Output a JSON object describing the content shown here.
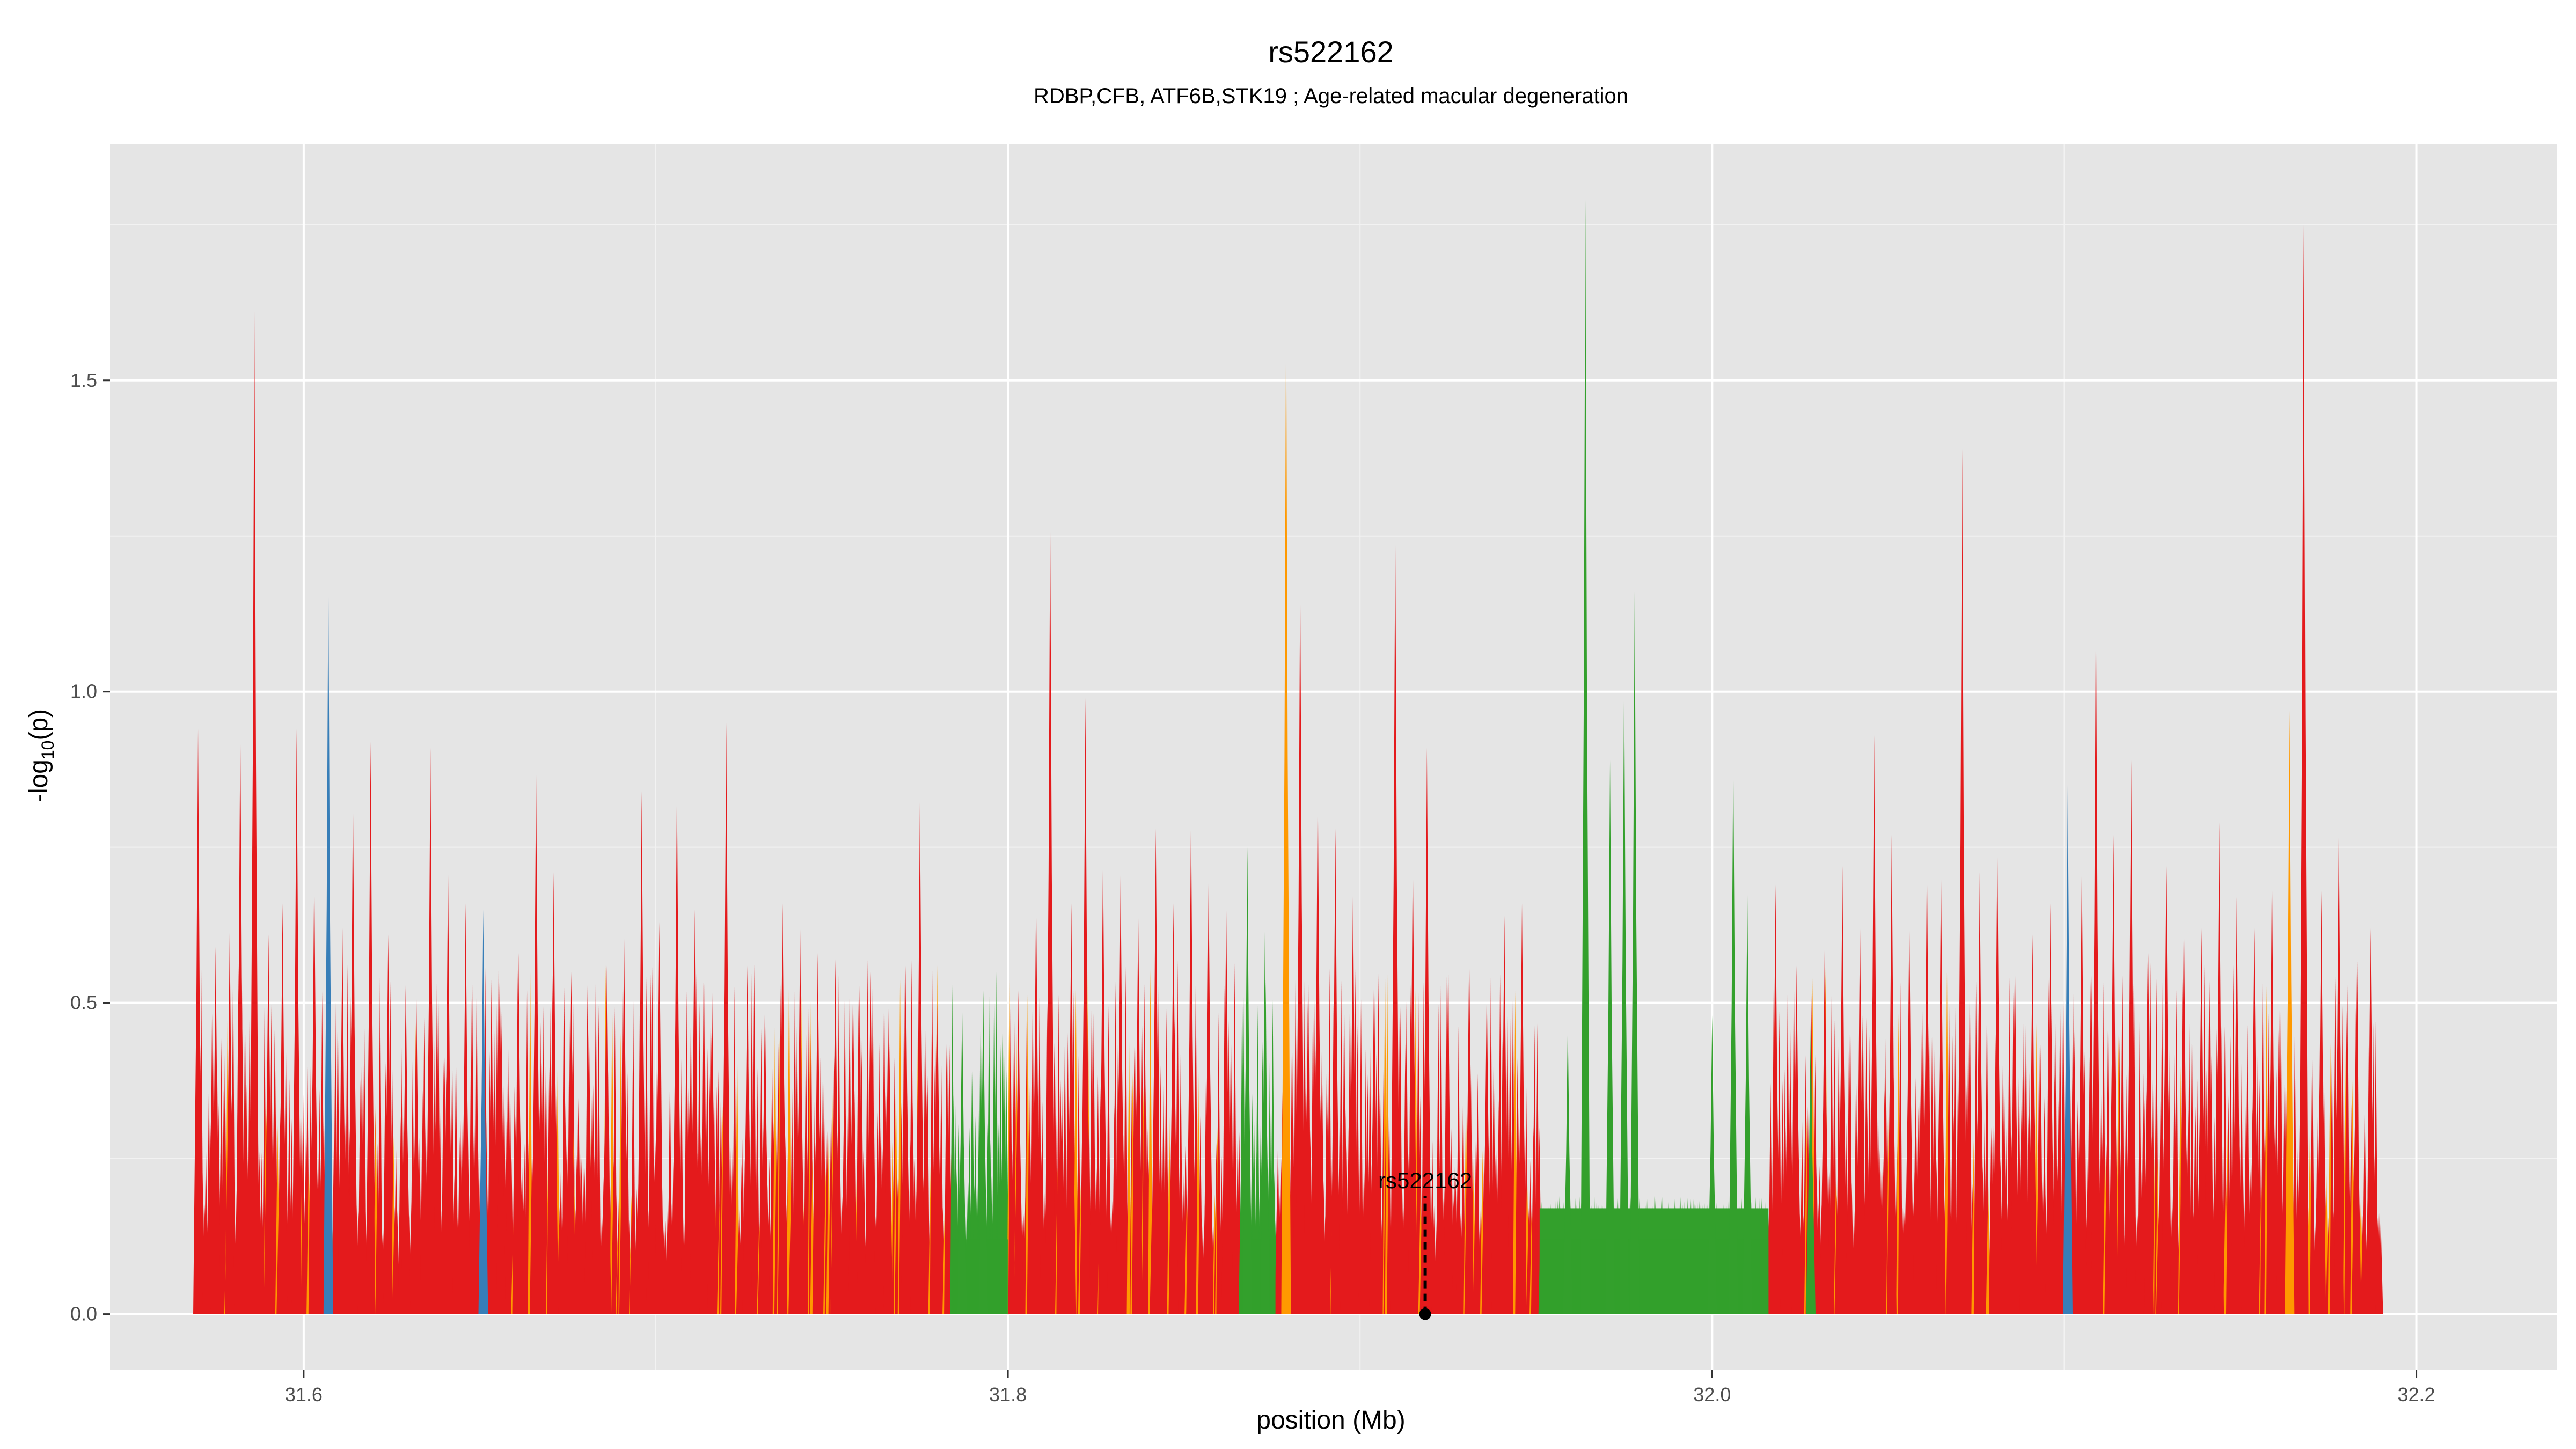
{
  "chart_data": {
    "type": "area",
    "title": "rs522162",
    "subtitle": "RDBP,CFB, ATF6B,STK19 ; Age-related macular degeneration",
    "xlabel": "position (Mb)",
    "ylabel_prefix": "-log",
    "ylabel_sub": "10",
    "ylabel_suffix": "(p)",
    "xlim": [
      31.545,
      32.24
    ],
    "ylim": [
      -0.09,
      1.88
    ],
    "x_ticks": [
      31.6,
      31.8,
      32.0,
      32.2
    ],
    "x_tick_labels": [
      "31.6",
      "31.8",
      "32.0",
      "32.2"
    ],
    "y_ticks": [
      0.0,
      0.5,
      1.0,
      1.5
    ],
    "y_tick_labels": [
      "0.0",
      "0.5",
      "1.0",
      "1.5"
    ],
    "grid": true,
    "background": "#e5e5e5",
    "colors": {
      "red": "#e41a1c",
      "green": "#33a02c",
      "blue": "#377eb8",
      "orange": "#ff9900"
    },
    "data_range": [
      31.57,
      32.19
    ],
    "green_regions": [
      [
        31.784,
        31.8
      ],
      [
        31.866,
        31.876
      ],
      [
        31.951,
        32.016
      ]
    ],
    "green_plateau": {
      "x": [
        31.951,
        32.016
      ],
      "y": 0.17
    },
    "peaks": [
      {
        "x": 31.57,
        "y": 0.94,
        "color": "red"
      },
      {
        "x": 31.575,
        "y": 0.59,
        "color": "red"
      },
      {
        "x": 31.579,
        "y": 0.62,
        "color": "red"
      },
      {
        "x": 31.582,
        "y": 0.95,
        "color": "red"
      },
      {
        "x": 31.586,
        "y": 1.61,
        "color": "red"
      },
      {
        "x": 31.59,
        "y": 0.61,
        "color": "red"
      },
      {
        "x": 31.594,
        "y": 0.66,
        "color": "red"
      },
      {
        "x": 31.598,
        "y": 0.94,
        "color": "red"
      },
      {
        "x": 31.603,
        "y": 0.72,
        "color": "red"
      },
      {
        "x": 31.607,
        "y": 1.19,
        "color": "blue"
      },
      {
        "x": 31.611,
        "y": 0.62,
        "color": "red"
      },
      {
        "x": 31.614,
        "y": 0.84,
        "color": "red"
      },
      {
        "x": 31.619,
        "y": 0.92,
        "color": "red"
      },
      {
        "x": 31.624,
        "y": 0.61,
        "color": "red"
      },
      {
        "x": 31.629,
        "y": 0.54,
        "color": "red"
      },
      {
        "x": 31.632,
        "y": 0.52,
        "color": "red"
      },
      {
        "x": 31.636,
        "y": 0.91,
        "color": "red"
      },
      {
        "x": 31.641,
        "y": 0.72,
        "color": "red"
      },
      {
        "x": 31.646,
        "y": 0.66,
        "color": "red"
      },
      {
        "x": 31.651,
        "y": 0.65,
        "color": "blue"
      },
      {
        "x": 31.656,
        "y": 0.52,
        "color": "red"
      },
      {
        "x": 31.661,
        "y": 0.58,
        "color": "red"
      },
      {
        "x": 31.666,
        "y": 0.88,
        "color": "red"
      },
      {
        "x": 31.671,
        "y": 0.71,
        "color": "red"
      },
      {
        "x": 31.676,
        "y": 0.55,
        "color": "red"
      },
      {
        "x": 31.681,
        "y": 0.48,
        "color": "red"
      },
      {
        "x": 31.686,
        "y": 0.56,
        "color": "red"
      },
      {
        "x": 31.691,
        "y": 0.61,
        "color": "red"
      },
      {
        "x": 31.696,
        "y": 0.84,
        "color": "red"
      },
      {
        "x": 31.701,
        "y": 0.63,
        "color": "red"
      },
      {
        "x": 31.706,
        "y": 0.86,
        "color": "red"
      },
      {
        "x": 31.711,
        "y": 0.65,
        "color": "red"
      },
      {
        "x": 31.716,
        "y": 0.52,
        "color": "red"
      },
      {
        "x": 31.72,
        "y": 0.95,
        "color": "red"
      },
      {
        "x": 31.726,
        "y": 0.56,
        "color": "red"
      },
      {
        "x": 31.731,
        "y": 0.51,
        "color": "red"
      },
      {
        "x": 31.736,
        "y": 0.66,
        "color": "red"
      },
      {
        "x": 31.741,
        "y": 0.62,
        "color": "red"
      },
      {
        "x": 31.746,
        "y": 0.58,
        "color": "red"
      },
      {
        "x": 31.751,
        "y": 0.57,
        "color": "red"
      },
      {
        "x": 31.756,
        "y": 0.53,
        "color": "red"
      },
      {
        "x": 31.761,
        "y": 0.55,
        "color": "red"
      },
      {
        "x": 31.766,
        "y": 0.49,
        "color": "red"
      },
      {
        "x": 31.771,
        "y": 0.56,
        "color": "red"
      },
      {
        "x": 31.775,
        "y": 0.83,
        "color": "red"
      },
      {
        "x": 31.78,
        "y": 0.5,
        "color": "red"
      },
      {
        "x": 31.787,
        "y": 0.5,
        "color": "green"
      },
      {
        "x": 31.793,
        "y": 0.52,
        "color": "green"
      },
      {
        "x": 31.803,
        "y": 0.52,
        "color": "red"
      },
      {
        "x": 31.808,
        "y": 0.68,
        "color": "red"
      },
      {
        "x": 31.812,
        "y": 1.29,
        "color": "red"
      },
      {
        "x": 31.818,
        "y": 0.66,
        "color": "red"
      },
      {
        "x": 31.822,
        "y": 0.99,
        "color": "red"
      },
      {
        "x": 31.827,
        "y": 0.74,
        "color": "red"
      },
      {
        "x": 31.832,
        "y": 0.71,
        "color": "red"
      },
      {
        "x": 31.837,
        "y": 0.65,
        "color": "red"
      },
      {
        "x": 31.842,
        "y": 0.78,
        "color": "red"
      },
      {
        "x": 31.847,
        "y": 0.66,
        "color": "red"
      },
      {
        "x": 31.852,
        "y": 0.81,
        "color": "red"
      },
      {
        "x": 31.857,
        "y": 0.7,
        "color": "red"
      },
      {
        "x": 31.862,
        "y": 0.66,
        "color": "red"
      },
      {
        "x": 31.868,
        "y": 0.75,
        "color": "green"
      },
      {
        "x": 31.873,
        "y": 0.62,
        "color": "green"
      },
      {
        "x": 31.879,
        "y": 1.63,
        "color": "orange"
      },
      {
        "x": 31.883,
        "y": 1.2,
        "color": "red"
      },
      {
        "x": 31.888,
        "y": 0.86,
        "color": "red"
      },
      {
        "x": 31.893,
        "y": 0.78,
        "color": "red"
      },
      {
        "x": 31.898,
        "y": 0.68,
        "color": "red"
      },
      {
        "x": 31.904,
        "y": 0.56,
        "color": "red"
      },
      {
        "x": 31.91,
        "y": 1.27,
        "color": "red"
      },
      {
        "x": 31.915,
        "y": 0.74,
        "color": "red"
      },
      {
        "x": 31.919,
        "y": 0.91,
        "color": "red"
      },
      {
        "x": 31.925,
        "y": 0.55,
        "color": "red"
      },
      {
        "x": 31.931,
        "y": 0.59,
        "color": "red"
      },
      {
        "x": 31.936,
        "y": 0.53,
        "color": "red"
      },
      {
        "x": 31.941,
        "y": 0.64,
        "color": "red"
      },
      {
        "x": 31.946,
        "y": 0.66,
        "color": "red"
      },
      {
        "x": 31.959,
        "y": 0.47,
        "color": "green"
      },
      {
        "x": 31.964,
        "y": 1.79,
        "color": "green"
      },
      {
        "x": 31.971,
        "y": 0.89,
        "color": "green"
      },
      {
        "x": 31.975,
        "y": 1.03,
        "color": "green"
      },
      {
        "x": 31.978,
        "y": 1.16,
        "color": "green"
      },
      {
        "x": 32.0,
        "y": 0.48,
        "color": "green"
      },
      {
        "x": 32.006,
        "y": 0.9,
        "color": "green"
      },
      {
        "x": 32.01,
        "y": 0.68,
        "color": "green"
      },
      {
        "x": 32.018,
        "y": 0.69,
        "color": "red"
      },
      {
        "x": 32.024,
        "y": 0.56,
        "color": "red"
      },
      {
        "x": 32.028,
        "y": 0.47,
        "color": "green"
      },
      {
        "x": 32.032,
        "y": 0.61,
        "color": "red"
      },
      {
        "x": 32.037,
        "y": 0.72,
        "color": "red"
      },
      {
        "x": 32.042,
        "y": 0.63,
        "color": "red"
      },
      {
        "x": 32.046,
        "y": 0.93,
        "color": "red"
      },
      {
        "x": 32.051,
        "y": 0.77,
        "color": "red"
      },
      {
        "x": 32.056,
        "y": 0.64,
        "color": "red"
      },
      {
        "x": 32.061,
        "y": 0.74,
        "color": "red"
      },
      {
        "x": 32.065,
        "y": 0.72,
        "color": "red"
      },
      {
        "x": 32.071,
        "y": 1.39,
        "color": "red"
      },
      {
        "x": 32.076,
        "y": 0.71,
        "color": "red"
      },
      {
        "x": 32.081,
        "y": 0.76,
        "color": "red"
      },
      {
        "x": 32.086,
        "y": 0.58,
        "color": "red"
      },
      {
        "x": 32.091,
        "y": 0.61,
        "color": "red"
      },
      {
        "x": 32.096,
        "y": 0.66,
        "color": "red"
      },
      {
        "x": 32.101,
        "y": 0.85,
        "color": "blue"
      },
      {
        "x": 32.105,
        "y": 0.73,
        "color": "red"
      },
      {
        "x": 32.109,
        "y": 1.15,
        "color": "red"
      },
      {
        "x": 32.114,
        "y": 0.77,
        "color": "red"
      },
      {
        "x": 32.119,
        "y": 0.89,
        "color": "red"
      },
      {
        "x": 32.124,
        "y": 0.58,
        "color": "red"
      },
      {
        "x": 32.129,
        "y": 0.72,
        "color": "red"
      },
      {
        "x": 32.134,
        "y": 0.65,
        "color": "red"
      },
      {
        "x": 32.139,
        "y": 0.62,
        "color": "red"
      },
      {
        "x": 32.144,
        "y": 0.79,
        "color": "red"
      },
      {
        "x": 32.149,
        "y": 0.67,
        "color": "red"
      },
      {
        "x": 32.154,
        "y": 0.62,
        "color": "red"
      },
      {
        "x": 32.159,
        "y": 0.73,
        "color": "red"
      },
      {
        "x": 32.164,
        "y": 0.97,
        "color": "orange"
      },
      {
        "x": 32.168,
        "y": 1.75,
        "color": "red"
      },
      {
        "x": 32.173,
        "y": 0.68,
        "color": "red"
      },
      {
        "x": 32.178,
        "y": 0.79,
        "color": "red"
      },
      {
        "x": 32.183,
        "y": 0.55,
        "color": "red"
      },
      {
        "x": 32.187,
        "y": 0.62,
        "color": "red"
      }
    ],
    "annotation": {
      "label": "rs522162",
      "x": 31.9185,
      "y": 0.0
    }
  }
}
